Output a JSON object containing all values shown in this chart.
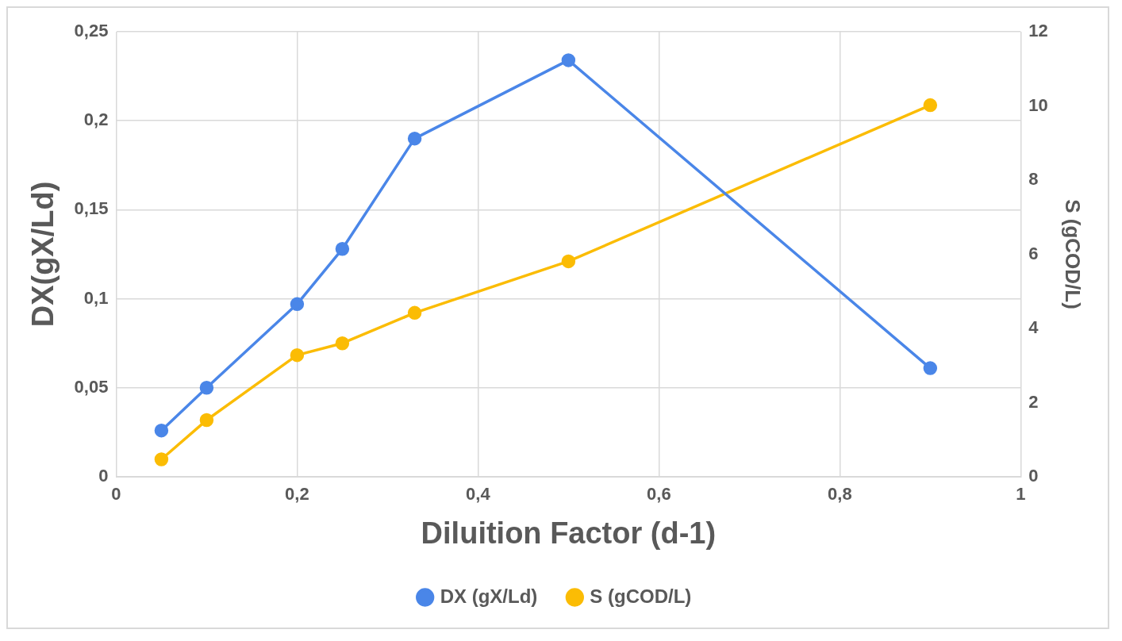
{
  "chart_data": {
    "type": "line",
    "xlabel": "Diluition Factor (d-1)",
    "ylabel": "DX(gX/Ld)",
    "y2label": "S (gCOD/L)",
    "series": [
      {
        "name": "DX (gX/Ld)",
        "color": "#4a86e8",
        "x": [
          0.05,
          0.1,
          0.2,
          0.25,
          0.33,
          0.5,
          0.9
        ],
        "values": [
          0.026,
          0.05,
          0.097,
          0.128,
          0.19,
          0.234,
          0.061
        ]
      },
      {
        "name": "S (gCOD/L)",
        "color": "#fbbc04",
        "axis": "y2",
        "x": [
          0.05,
          0.1,
          0.2,
          0.25,
          0.33,
          0.5,
          0.9
        ],
        "values": [
          0.47,
          1.53,
          3.28,
          3.6,
          4.42,
          5.81,
          10.02
        ]
      }
    ],
    "xlim": [
      0,
      1
    ],
    "xticks": [
      0,
      {
        "value": 0.2,
        "label": "0,2"
      },
      {
        "value": 0.4,
        "label": "0,4"
      },
      {
        "value": 0.6,
        "label": "0,6"
      },
      {
        "value": 0.8,
        "label": "0,8"
      },
      1
    ],
    "ylim": [
      0,
      0.25
    ],
    "yticks": [
      0,
      {
        "value": 0.05,
        "label": "0,05"
      },
      {
        "value": 0.1,
        "label": "0,1"
      },
      {
        "value": 0.15,
        "label": "0,15"
      },
      {
        "value": 0.2,
        "label": "0,2"
      },
      {
        "value": 0.25,
        "label": "0,25"
      }
    ],
    "y2lim": [
      0,
      12
    ],
    "y2ticks": [
      0,
      2,
      4,
      6,
      8,
      10,
      12
    ],
    "grid": true,
    "legend": "bottom",
    "marker": "circle",
    "line_style": "solid"
  }
}
